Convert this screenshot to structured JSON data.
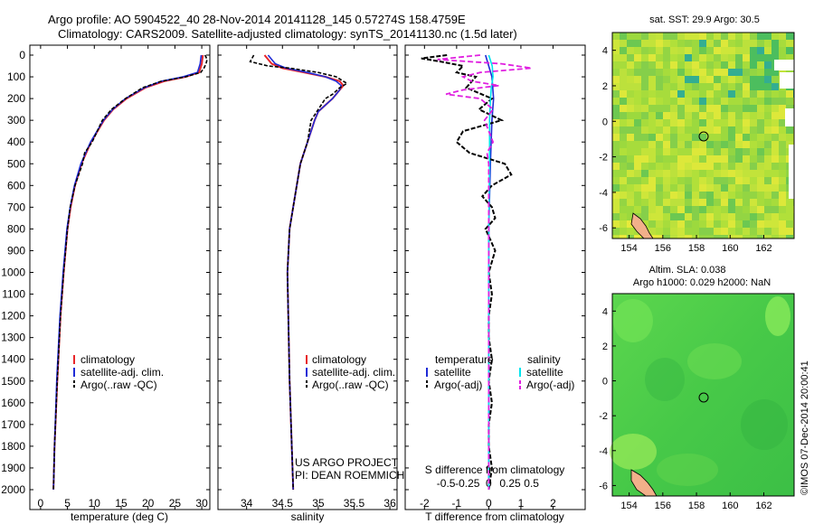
{
  "title": {
    "line1": "Argo profile: AO 5904522_40 28-Nov-2014 20141128_145 0.57274S 158.4759E",
    "line2": "Climatology: CARS2009. Satellite-adjusted climatology: synTS_20141130.nc (1.5d later)"
  },
  "colors": {
    "clim": "#e8262a",
    "sat": "#1f2bd6",
    "argo": "#000000",
    "sat_s": "#00e5ee",
    "argo_s": "#e020e0"
  },
  "depth_axis": {
    "ticks": [
      "0",
      "100",
      "200",
      "300",
      "400",
      "500",
      "600",
      "700",
      "800",
      "900",
      "1000",
      "1100",
      "1200",
      "1300",
      "1400",
      "1500",
      "1600",
      "1700",
      "1800",
      "1900",
      "2000"
    ]
  },
  "chart_data": [
    {
      "type": "line",
      "name": "temperature-profile",
      "xlabel": "temperature (deg C)",
      "ylabel": "depth",
      "xlim": [
        -2,
        31.5
      ],
      "ylim": [
        2100,
        0
      ],
      "xticks": [
        "0",
        "5",
        "10",
        "15",
        "20",
        "25",
        "30"
      ],
      "legend": [
        "climatology",
        "satellite-adj. clim.",
        "Argo(..raw -QC)"
      ],
      "series": [
        {
          "name": "climatology",
          "depth": [
            0,
            40,
            80,
            100,
            120,
            150,
            200,
            250,
            300,
            400,
            500,
            600,
            700,
            800,
            1000,
            1200,
            1500,
            1800,
            2000
          ],
          "values": [
            30.2,
            30.0,
            29.5,
            27,
            23,
            19.5,
            16,
            13.5,
            11.8,
            9.4,
            7.6,
            6.4,
            5.6,
            5.0,
            4.3,
            3.7,
            3.1,
            2.6,
            2.4
          ]
        },
        {
          "name": "satellite-adj. clim.",
          "depth": [
            0,
            40,
            80,
            100,
            120,
            150,
            200,
            250,
            300,
            400,
            500,
            600,
            700,
            800,
            1000,
            1200,
            1500,
            1800,
            2000
          ],
          "values": [
            29.9,
            29.7,
            29.2,
            26.5,
            22.5,
            19.3,
            15.8,
            13.4,
            11.7,
            9.3,
            7.5,
            6.3,
            5.5,
            4.9,
            4.2,
            3.6,
            3.0,
            2.6,
            2.4
          ]
        },
        {
          "name": "Argo(..raw -QC)",
          "depth": [
            0,
            20,
            40,
            60,
            80,
            100,
            120,
            150,
            200,
            250,
            300,
            400,
            450,
            500,
            600,
            700,
            800,
            1000,
            1200,
            1500,
            1800,
            2000
          ],
          "values": [
            30.6,
            31.0,
            30.8,
            30.4,
            29.8,
            27.0,
            22.5,
            19.0,
            15.8,
            13.2,
            11.5,
            9.6,
            8.2,
            7.8,
            6.4,
            5.5,
            5.0,
            4.3,
            3.7,
            3.1,
            2.6,
            2.4
          ]
        }
      ]
    },
    {
      "type": "line",
      "name": "salinity-profile",
      "xlabel": "salinity",
      "xlim": [
        33.6,
        36.1
      ],
      "ylim": [
        2100,
        0
      ],
      "xticks": [
        "34",
        "34.5",
        "35",
        "35.5",
        "36"
      ],
      "legend": [
        "climatology",
        "satellite-adj. clim.",
        "Argo(..raw -QC)"
      ],
      "annotation": [
        "US ARGO PROJECT",
        "PI: DEAN ROEMMICH"
      ],
      "series": [
        {
          "name": "climatology",
          "depth": [
            0,
            40,
            60,
            80,
            100,
            120,
            140,
            160,
            180,
            200,
            230,
            260,
            300,
            400,
            500,
            600,
            800,
            1000,
            1500,
            2000
          ],
          "values": [
            34.25,
            34.35,
            34.5,
            34.8,
            35.1,
            35.3,
            35.35,
            35.3,
            35.25,
            35.2,
            35.1,
            35.0,
            34.95,
            34.85,
            34.75,
            34.7,
            34.6,
            34.57,
            34.6,
            34.65
          ]
        },
        {
          "name": "satellite-adj. clim.",
          "depth": [
            0,
            40,
            60,
            80,
            100,
            120,
            140,
            160,
            180,
            200,
            230,
            260,
            300,
            400,
            500,
            600,
            800,
            1000,
            1500,
            2000
          ],
          "values": [
            34.3,
            34.4,
            34.55,
            34.85,
            35.1,
            35.25,
            35.32,
            35.3,
            35.25,
            35.2,
            35.1,
            35.0,
            34.95,
            34.85,
            34.75,
            34.7,
            34.6,
            34.57,
            34.6,
            34.65
          ]
        },
        {
          "name": "Argo(..raw -QC)",
          "depth": [
            0,
            30,
            50,
            60,
            80,
            100,
            120,
            130,
            150,
            180,
            200,
            250,
            300,
            400,
            500,
            600,
            800,
            1000,
            1500,
            2000
          ],
          "values": [
            34.1,
            34.05,
            34.3,
            34.6,
            35.0,
            35.25,
            35.35,
            35.4,
            35.3,
            35.2,
            35.1,
            35.0,
            34.9,
            34.85,
            34.75,
            34.7,
            34.6,
            34.57,
            34.6,
            34.65
          ]
        }
      ]
    },
    {
      "type": "line",
      "name": "difference-profile",
      "xlabel": "T difference from climatology",
      "xlabel2": "S difference from climatology",
      "xlim": [
        -2.6,
        3.0
      ],
      "ylim": [
        2100,
        0
      ],
      "xticks": [
        "-2",
        "-1",
        "0",
        "1",
        "2"
      ],
      "xticks_s": [
        "-0.5",
        "-0.25",
        "0",
        "0.25",
        "0.5"
      ],
      "legend_headers": [
        "temperature",
        "salinity"
      ],
      "legend": [
        "satellite",
        "Argo(-adj)",
        "satellite",
        "Argo(-adj)"
      ],
      "series": [
        {
          "name": "T satellite",
          "depth": [
            0,
            100,
            200,
            300,
            500,
            800,
            1000,
            1500,
            2000
          ],
          "values": [
            -0.1,
            0.1,
            0.15,
            0.1,
            0.05,
            0.0,
            0.0,
            0.0,
            0.0
          ]
        },
        {
          "name": "T Argo(-adj)",
          "depth": [
            0,
            15,
            30,
            50,
            80,
            100,
            150,
            200,
            250,
            300,
            350,
            400,
            450,
            500,
            550,
            600,
            650,
            700,
            750,
            800,
            900,
            1000,
            1100,
            1200,
            1300,
            1400,
            1500,
            1600,
            1700,
            1800,
            1900,
            2000
          ],
          "values": [
            -1.3,
            -2.1,
            -1.5,
            -0.8,
            -1.0,
            -0.4,
            -0.7,
            0.1,
            -0.3,
            0.4,
            -0.8,
            -1.0,
            -0.6,
            0.5,
            0.7,
            0.1,
            -0.2,
            0.1,
            0.2,
            -0.1,
            0.2,
            0.0,
            0.1,
            0.0,
            0.0,
            0.1,
            0.0,
            0.1,
            0.0,
            0.0,
            0.1,
            0.0
          ]
        },
        {
          "name": "S satellite",
          "depth": [
            0,
            50,
            100,
            150,
            200,
            300,
            500,
            800,
            1000,
            1500,
            2000
          ],
          "values": [
            0.0,
            0.04,
            0.05,
            0.03,
            0.02,
            0.01,
            0.01,
            0.0,
            0.0,
            0.0,
            0.0
          ]
        },
        {
          "name": "S Argo(-adj)",
          "depth": [
            0,
            20,
            40,
            60,
            80,
            100,
            120,
            140,
            160,
            180,
            200,
            250,
            300,
            400,
            450,
            500,
            600,
            800,
            1000,
            1500,
            2000
          ],
          "values": [
            -0.1,
            -0.6,
            0.15,
            0.5,
            -0.1,
            -0.3,
            -0.2,
            0.12,
            -0.3,
            -0.5,
            -0.1,
            0.05,
            -0.05,
            0.05,
            -0.02,
            0.0,
            0.0,
            0.0,
            0.0,
            0.0,
            0.0
          ]
        }
      ]
    },
    {
      "type": "heatmap",
      "name": "sst-map",
      "title": "sat. SST: 29.9 Argo: 30.5",
      "xticks": [
        "154",
        "156",
        "158",
        "160",
        "162"
      ],
      "yticks": [
        "4",
        "2",
        "0",
        "-2",
        "-4",
        "-6"
      ],
      "xlim": [
        153.0,
        163.8
      ],
      "ylim": [
        -6.6,
        5.0
      ],
      "marker": {
        "lon": 158.4759,
        "lat": -0.5727
      }
    },
    {
      "type": "heatmap",
      "name": "sla-map",
      "title_line1": "Altim. SLA: 0.038",
      "title_line2": "Argo h1000: 0.029 h2000: NaN",
      "xticks": [
        "154",
        "156",
        "158",
        "160",
        "162"
      ],
      "yticks": [
        "4",
        "2",
        "0",
        "-2",
        "-4",
        "-6"
      ],
      "xlim": [
        153.0,
        163.8
      ],
      "ylim": [
        -6.6,
        5.0
      ],
      "marker": {
        "lon": 158.4759,
        "lat": -0.5727
      }
    }
  ],
  "watermark": "©IMOS 07-Dec-2014 20:00:41"
}
